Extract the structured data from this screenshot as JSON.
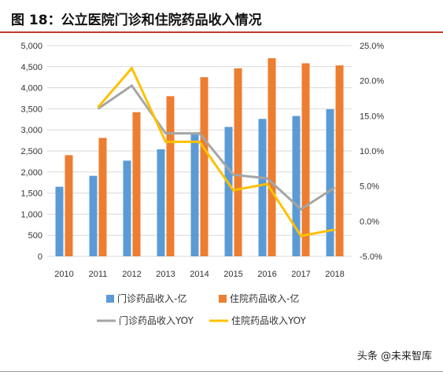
{
  "figure": {
    "title": "图 18：公立医院门诊和住院药品收入情况"
  },
  "watermark": "头条 @未来智库",
  "chart_data": {
    "type": "bar",
    "categories": [
      "2010",
      "2011",
      "2012",
      "2013",
      "2014",
      "2015",
      "2016",
      "2017",
      "2018"
    ],
    "y_left": {
      "ticks": [
        "0",
        "500",
        "1,000",
        "1,500",
        "2,000",
        "2,500",
        "3,000",
        "3,500",
        "4,000",
        "4,500",
        "5,000"
      ],
      "ylim": [
        0,
        5000
      ]
    },
    "y_right": {
      "ticks": [
        "-5.0%",
        "0.0%",
        "5.0%",
        "10.0%",
        "15.0%",
        "20.0%",
        "25.0%"
      ],
      "ylim": [
        -5,
        25
      ]
    },
    "grid": "horizontal",
    "legend_placement": "bottom",
    "series": [
      {
        "name": "门诊药品收入-亿",
        "kind": "bar",
        "axis": "left",
        "color": "#5b9bd5",
        "values": [
          1650,
          1910,
          2270,
          2540,
          2890,
          3070,
          3260,
          3330,
          3490
        ]
      },
      {
        "name": "住院药品收入-亿",
        "kind": "bar",
        "axis": "left",
        "color": "#ed7d31",
        "values": [
          2400,
          2810,
          3420,
          3800,
          4250,
          4460,
          4700,
          4580,
          4530
        ]
      },
      {
        "name": "门诊药品收入YOY",
        "kind": "line",
        "axis": "right",
        "color": "#a5a5a5",
        "values": [
          null,
          16.0,
          19.3,
          12.5,
          12.5,
          6.6,
          6.1,
          1.7,
          4.8
        ]
      },
      {
        "name": "住院药品收入YOY",
        "kind": "line",
        "axis": "right",
        "color": "#ffc000",
        "values": [
          null,
          16.2,
          21.8,
          11.3,
          11.3,
          4.4,
          5.3,
          -2.1,
          -1.2
        ]
      }
    ]
  }
}
